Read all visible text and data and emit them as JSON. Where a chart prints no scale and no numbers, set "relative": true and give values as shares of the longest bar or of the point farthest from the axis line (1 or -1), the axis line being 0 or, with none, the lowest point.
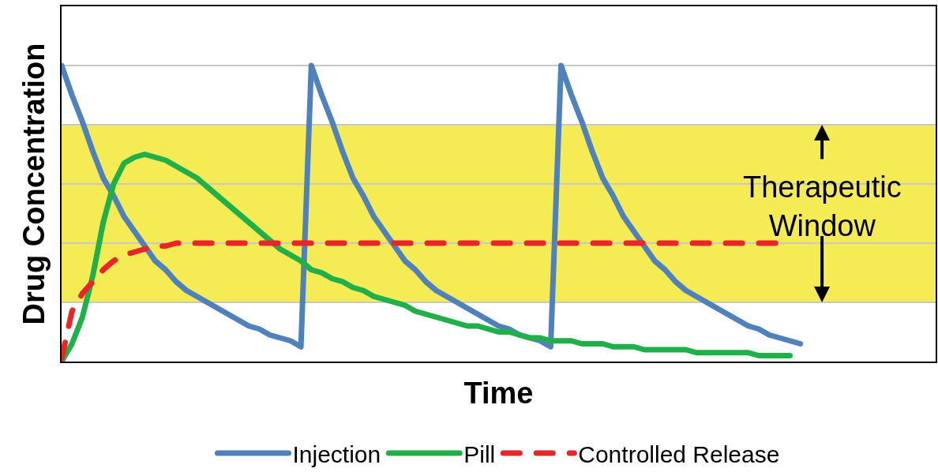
{
  "chart_data": {
    "type": "line",
    "relative": true,
    "xlabel": "Time",
    "ylabel": "Drug Concentration",
    "categories": [
      null,
      null,
      null,
      null,
      null,
      null,
      null,
      null,
      null,
      null,
      null,
      null,
      null,
      null,
      null,
      null,
      null,
      null,
      null,
      null,
      null,
      null,
      null,
      null,
      null,
      null,
      null,
      null,
      null,
      null,
      null,
      null,
      null,
      null,
      null,
      null,
      null,
      null,
      null,
      null,
      null,
      null,
      null,
      null,
      null,
      null,
      null,
      null,
      null,
      null,
      null,
      null,
      null,
      null,
      null,
      null,
      null,
      null,
      null,
      null,
      null,
      null,
      null,
      null,
      null,
      null,
      null,
      null,
      null,
      null,
      null,
      null,
      null,
      null,
      null,
      null,
      null,
      null,
      null,
      null,
      null,
      null,
      null,
      null,
      null
    ],
    "series": [
      {
        "name": "Injection",
        "color": "#4f81bd",
        "line_style": "solid",
        "values": [
          1,
          0.9,
          0.81,
          0.71,
          0.62,
          0.56,
          0.49,
          0.44,
          0.39,
          0.34,
          0.31,
          0.27,
          0.24,
          0.22,
          0.2,
          0.18,
          0.16,
          0.14,
          0.12,
          0.11,
          0.09,
          0.08,
          0.07,
          0.05,
          1,
          0.9,
          0.81,
          0.71,
          0.62,
          0.56,
          0.49,
          0.44,
          0.39,
          0.34,
          0.31,
          0.27,
          0.24,
          0.22,
          0.2,
          0.18,
          0.16,
          0.14,
          0.12,
          0.11,
          0.09,
          0.08,
          0.07,
          0.05,
          1,
          0.9,
          0.81,
          0.71,
          0.62,
          0.56,
          0.49,
          0.44,
          0.39,
          0.34,
          0.31,
          0.27,
          0.24,
          0.22,
          0.2,
          0.18,
          0.16,
          0.14,
          0.12,
          0.11,
          0.09,
          0.08,
          0.07,
          0.06,
          null,
          null,
          null,
          null,
          null,
          null,
          null,
          null,
          null,
          null,
          null,
          null,
          null
        ]
      },
      {
        "name": "Pill",
        "color": "#1fb04a",
        "line_style": "solid",
        "values": [
          0,
          0.06,
          0.15,
          0.29,
          0.47,
          0.6,
          0.67,
          0.69,
          0.7,
          0.69,
          0.68,
          0.66,
          0.64,
          0.62,
          0.59,
          0.56,
          0.53,
          0.5,
          0.47,
          0.44,
          0.41,
          0.38,
          0.36,
          0.34,
          0.31,
          0.3,
          0.28,
          0.27,
          0.25,
          0.24,
          0.22,
          0.21,
          0.2,
          0.19,
          0.17,
          0.16,
          0.15,
          0.14,
          0.13,
          0.12,
          0.12,
          0.11,
          0.1,
          0.1,
          0.09,
          0.08,
          0.08,
          0.07,
          0.07,
          0.07,
          0.06,
          0.06,
          0.06,
          0.05,
          0.05,
          0.05,
          0.04,
          0.04,
          0.04,
          0.04,
          0.04,
          0.03,
          0.03,
          0.03,
          0.03,
          0.03,
          0.03,
          0.02,
          0.02,
          0.02,
          0.02,
          null,
          null,
          null,
          null,
          null,
          null,
          null,
          null,
          null,
          null,
          null,
          null,
          null,
          null
        ]
      },
      {
        "name": "Controlled Release",
        "color": "#e8262a",
        "line_style": "dashed",
        "values": [
          0.01,
          0.17,
          0.23,
          0.27,
          0.31,
          0.34,
          0.36,
          0.37,
          0.38,
          0.39,
          0.39,
          0.4,
          0.4,
          0.4,
          0.4,
          0.4,
          0.4,
          0.4,
          0.4,
          0.4,
          0.4,
          0.4,
          0.4,
          0.4,
          0.4,
          0.4,
          0.4,
          0.4,
          0.4,
          0.4,
          0.4,
          0.4,
          0.4,
          0.4,
          0.4,
          0.4,
          0.4,
          0.4,
          0.4,
          0.4,
          0.4,
          0.4,
          0.4,
          0.4,
          0.4,
          0.4,
          0.4,
          0.4,
          0.4,
          0.4,
          0.4,
          0.4,
          0.4,
          0.4,
          0.4,
          0.4,
          0.4,
          0.4,
          0.4,
          0.4,
          0.4,
          0.4,
          0.4,
          0.4,
          0.4,
          0.4,
          0.4,
          0.4,
          0.4,
          0.4,
          null,
          null,
          null,
          null,
          null,
          null,
          null,
          null,
          null,
          null,
          null,
          null,
          null,
          null,
          null
        ]
      }
    ],
    "bands": [
      {
        "axis": "y",
        "from": 0.2,
        "to": 0.8,
        "label": "Therapeutic Window",
        "color": "#f5ec55"
      }
    ],
    "grid": "y",
    "legend": "bottom",
    "marker": "none"
  }
}
